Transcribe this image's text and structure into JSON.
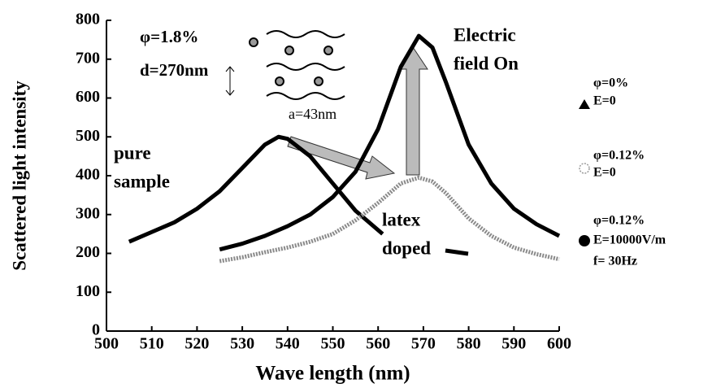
{
  "chart_data": {
    "type": "line",
    "xlabel": "Wave length (nm)",
    "ylabel": "Scattered light intensity",
    "xlim": [
      500,
      600
    ],
    "xticks": [
      500,
      510,
      520,
      530,
      540,
      550,
      560,
      570,
      580,
      590,
      600
    ],
    "ylim": [
      0,
      800
    ],
    "yticks": [
      0,
      100,
      200,
      300,
      400,
      500,
      600,
      700,
      800
    ],
    "series": [
      {
        "name": [
          "φ=0%",
          "E=0"
        ],
        "color": "#000000",
        "marker": "triangle",
        "style": "solid",
        "x": [
          505,
          510,
          515,
          520,
          525,
          530,
          535,
          538,
          540,
          545,
          550,
          555,
          560,
          561
        ],
        "values": [
          230,
          255,
          280,
          315,
          360,
          420,
          480,
          500,
          495,
          450,
          380,
          310,
          260,
          250
        ]
      },
      {
        "name": [
          "φ=0.12%",
          "E=0"
        ],
        "color": "#8a8a8a",
        "marker": "open-circle",
        "style": "dotted",
        "x": [
          525,
          530,
          535,
          540,
          545,
          550,
          555,
          560,
          565,
          569,
          572,
          575,
          580,
          585,
          590,
          595,
          600
        ],
        "values": [
          180,
          190,
          203,
          215,
          230,
          250,
          285,
          330,
          380,
          395,
          385,
          355,
          290,
          245,
          215,
          198,
          185
        ]
      },
      {
        "name": [
          "φ=0.12%",
          "E=10000V/m",
          "f= 30Hz"
        ],
        "color": "#000000",
        "marker": "circle",
        "style": "solid",
        "x": [
          525,
          530,
          535,
          540,
          545,
          550,
          555,
          560,
          565,
          569,
          572,
          575,
          580,
          585,
          590,
          595,
          600
        ],
        "values": [
          210,
          225,
          245,
          270,
          300,
          345,
          410,
          520,
          680,
          760,
          730,
          640,
          480,
          380,
          315,
          275,
          245
        ]
      }
    ],
    "annotations": [
      "φ=1.8%",
      "d=270nm",
      "a=43nm",
      "pure",
      "sample",
      "latex",
      "doped",
      "Electric",
      "field On"
    ]
  }
}
